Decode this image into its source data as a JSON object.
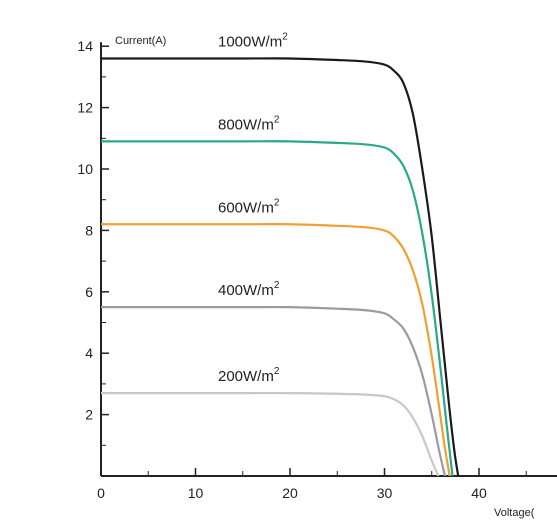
{
  "chart_data": {
    "type": "line",
    "title": "",
    "xlabel": "Voltage(",
    "ylabel": "Current(A)",
    "xlim": [
      0,
      48
    ],
    "ylim": [
      0,
      14
    ],
    "x_ticks": [
      0,
      10,
      20,
      30,
      40
    ],
    "y_ticks": [
      2,
      4,
      6,
      8,
      10,
      12,
      14
    ],
    "grid": false,
    "legend": "none",
    "series": [
      {
        "name": "1000W/m",
        "label_sup": "2",
        "color": "#1a1a1a",
        "x": [
          0,
          5,
          10,
          15,
          20,
          25,
          28,
          30,
          31,
          32,
          33,
          34,
          35,
          36,
          36.8,
          37.4,
          37.8
        ],
        "y": [
          13.6,
          13.6,
          13.6,
          13.6,
          13.6,
          13.55,
          13.5,
          13.4,
          13.2,
          12.8,
          11.8,
          10.0,
          7.8,
          4.8,
          2.4,
          0.8,
          0
        ]
      },
      {
        "name": "800W/m",
        "label_sup": "2",
        "color": "#2aa88a",
        "x": [
          0,
          5,
          10,
          15,
          20,
          25,
          28,
          30,
          31,
          32,
          33,
          34,
          35,
          36,
          36.6,
          37.2
        ],
        "y": [
          10.9,
          10.9,
          10.9,
          10.9,
          10.9,
          10.85,
          10.8,
          10.7,
          10.5,
          10.1,
          9.3,
          7.9,
          5.9,
          3.3,
          1.6,
          0
        ]
      },
      {
        "name": "600W/m",
        "label_sup": "2",
        "color": "#f0a030",
        "x": [
          0,
          5,
          10,
          15,
          20,
          25,
          28,
          30,
          31,
          32,
          33,
          34,
          35,
          35.8,
          36.4,
          36.9
        ],
        "y": [
          8.2,
          8.2,
          8.2,
          8.2,
          8.2,
          8.15,
          8.1,
          8.0,
          7.8,
          7.4,
          6.7,
          5.6,
          3.9,
          2.2,
          0.9,
          0
        ]
      },
      {
        "name": "400W/m",
        "label_sup": "2",
        "color": "#9a9aa8",
        "x": [
          0,
          5,
          10,
          15,
          20,
          25,
          28,
          30,
          31,
          32,
          33,
          34,
          35,
          35.8,
          36.4
        ],
        "y": [
          5.5,
          5.5,
          5.5,
          5.5,
          5.5,
          5.45,
          5.4,
          5.3,
          5.1,
          4.8,
          4.2,
          3.3,
          2.0,
          0.8,
          0
        ]
      },
      {
        "name": "200W/m",
        "label_sup": "2",
        "color": "#c8c8c8",
        "x": [
          0,
          5,
          10,
          15,
          20,
          25,
          28,
          30,
          31,
          32,
          33,
          34,
          35,
          35.7
        ],
        "y": [
          2.7,
          2.7,
          2.7,
          2.7,
          2.7,
          2.68,
          2.65,
          2.6,
          2.5,
          2.3,
          1.9,
          1.3,
          0.5,
          0
        ]
      }
    ]
  }
}
